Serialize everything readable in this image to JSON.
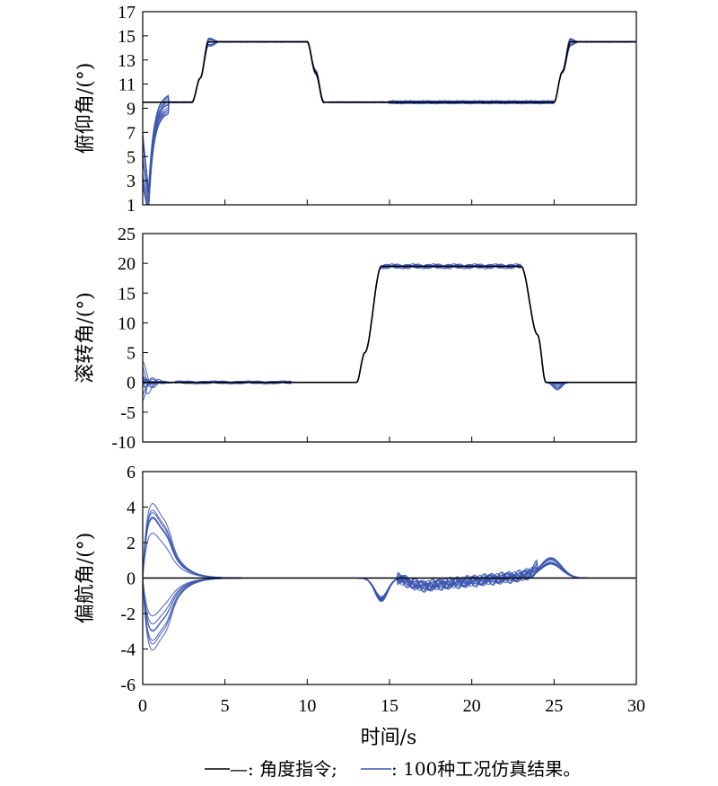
{
  "colors": {
    "command": "#000000",
    "sim": "#3a55b0",
    "axes": "#000000"
  },
  "x_axis": {
    "label": "时间/s",
    "range": [
      0,
      30
    ],
    "ticks": [
      0,
      5,
      10,
      15,
      20,
      25,
      30
    ]
  },
  "legend": {
    "command_label": "—: 角度指令;",
    "sim_label": ": 100种工况仿真结果。"
  },
  "chart_data": [
    {
      "type": "line",
      "ylabel": "俯仰角/(°)",
      "ylim": [
        1,
        17
      ],
      "yticks": [
        1,
        3,
        5,
        7,
        9,
        11,
        13,
        15,
        17
      ],
      "x": [
        0,
        3,
        3.5,
        4,
        10,
        10.5,
        11,
        25,
        25.5,
        26,
        30
      ],
      "series": [
        {
          "name": "角度指令",
          "values": [
            9.5,
            9.5,
            11.5,
            14.5,
            14.5,
            12,
            9.5,
            9.5,
            12,
            14.5,
            14.5
          ]
        },
        {
          "name": "100种工况仿真结果",
          "envelope": "approx. follows command; transient dip to ~1.5 near t=0.3 s, overshoot ~15.2 at t=4 s and t=26 s"
        }
      ]
    },
    {
      "type": "line",
      "ylabel": "滚转角/(°)",
      "ylim": [
        -10,
        25
      ],
      "yticks": [
        -10,
        -5,
        0,
        5,
        10,
        15,
        20,
        25
      ],
      "x": [
        0,
        13,
        13.5,
        14.5,
        23,
        24,
        24.5,
        30
      ],
      "series": [
        {
          "name": "角度指令",
          "values": [
            0,
            0,
            5,
            19.5,
            19.5,
            8,
            0,
            0
          ]
        },
        {
          "name": "100种工况仿真结果",
          "envelope": "initial oscillation ±5 over 0–1.5 s; overshoot ~-2 near t=25 s"
        }
      ]
    },
    {
      "type": "line",
      "ylabel": "偏航角/(°)",
      "ylim": [
        -6,
        6
      ],
      "yticks": [
        -6,
        -4,
        -2,
        0,
        2,
        4,
        6
      ],
      "x": [
        0,
        30
      ],
      "series": [
        {
          "name": "角度指令",
          "values": [
            0,
            0
          ]
        },
        {
          "name": "100种工况仿真结果",
          "envelope": "peaks ±4.2 near t=0.6 s decaying by 5 s; dip -1.2 near t=14.5 s; small oscillation 17–23 s; bump +1.0 near t=24.8 s"
        }
      ]
    }
  ]
}
